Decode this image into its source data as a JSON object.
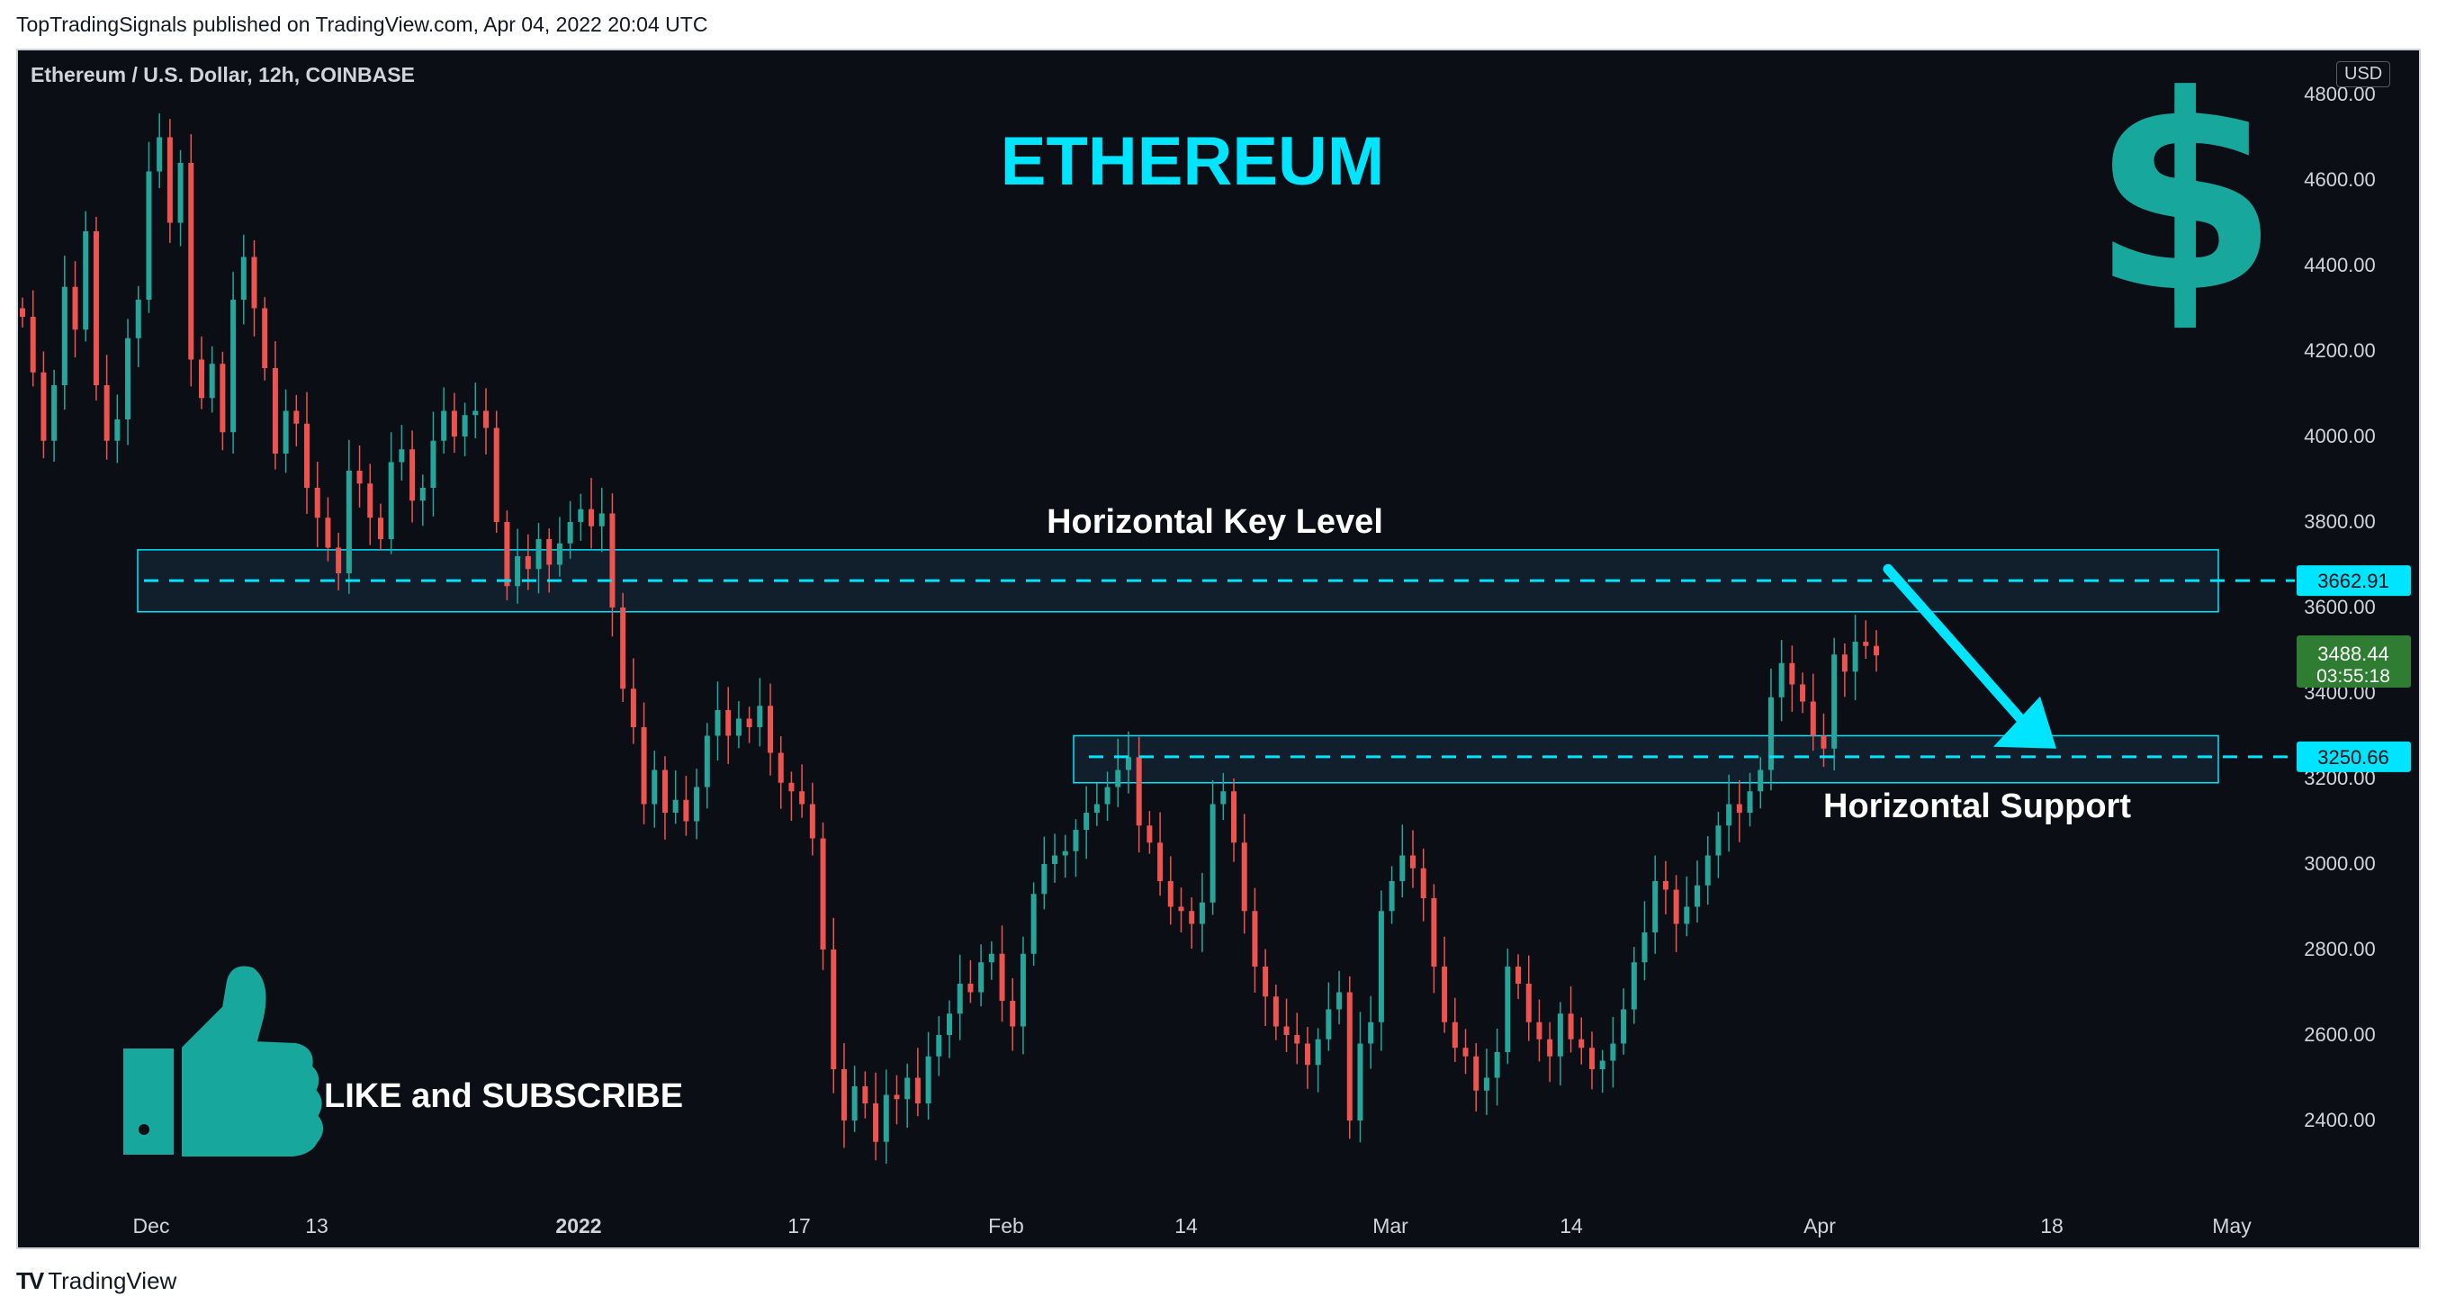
{
  "publisher_line": "TopTradingSignals published on TradingView.com, Apr 04, 2022 20:04 UTC",
  "symbol_line": "Ethereum / U.S. Dollar, 12h, COINBASE",
  "currency_badge": "USD",
  "footer_brand": "TradingView",
  "icons": [
    "dollar-sign-icon",
    "thumbs-up-icon",
    "arrow-down-right-icon",
    "tradingview-logo-icon"
  ],
  "colors": {
    "up": "#26a69a",
    "down": "#ef5350",
    "accent": "#00e5ff",
    "background": "#0c0e15",
    "text": "#d1d4dc"
  },
  "chart_data": {
    "type": "candlestick",
    "title": "ETHEREUM",
    "annotations": {
      "key_level_label": "Horizontal Key Level",
      "support_label": "Horizontal Support",
      "cta_label": "LIKE and SUBSCRIBE"
    },
    "ylim": [
      2230,
      4820
    ],
    "y_ticks": [
      2400,
      2600,
      2800,
      3000,
      3200,
      3400,
      3600,
      3800,
      4000,
      4200,
      4400,
      4600,
      4800
    ],
    "x_ticks": [
      "Dec",
      "13",
      "2022",
      "17",
      "Feb",
      "14",
      "Mar",
      "14",
      "Apr",
      "18",
      "May"
    ],
    "levels": [
      {
        "name": "key_level",
        "value": 3662.91,
        "label": "3662.91",
        "zone": [
          3590,
          3735
        ]
      },
      {
        "name": "support",
        "value": 3250.66,
        "label": "3250.66",
        "zone": [
          3190,
          3300
        ]
      }
    ],
    "last_price": {
      "value": 3488.44,
      "label": "3488.44",
      "countdown": "03:55:18"
    },
    "projection": {
      "from": 3690,
      "to": 3270
    },
    "closes": [
      4280,
      4150,
      3990,
      4120,
      4350,
      4250,
      4480,
      4120,
      3990,
      4040,
      4230,
      4320,
      4620,
      4700,
      4500,
      4640,
      4180,
      4090,
      4170,
      4010,
      4320,
      4420,
      4300,
      4160,
      3960,
      4060,
      4030,
      3880,
      3810,
      3740,
      3680,
      3920,
      3890,
      3810,
      3760,
      3940,
      3970,
      3850,
      3880,
      3990,
      4060,
      4000,
      4050,
      4060,
      4020,
      3800,
      3650,
      3720,
      3690,
      3760,
      3700,
      3750,
      3800,
      3830,
      3790,
      3820,
      3600,
      3410,
      3320,
      3140,
      3220,
      3120,
      3150,
      3100,
      3180,
      3300,
      3360,
      3300,
      3340,
      3320,
      3370,
      3260,
      3190,
      3170,
      3140,
      3060,
      2800,
      2520,
      2400,
      2480,
      2440,
      2350,
      2460,
      2450,
      2500,
      2440,
      2550,
      2600,
      2650,
      2720,
      2700,
      2770,
      2790,
      2680,
      2620,
      2790,
      2930,
      3000,
      3020,
      3030,
      3080,
      3120,
      3140,
      3180,
      3220,
      3250,
      3090,
      3050,
      2960,
      2900,
      2890,
      2860,
      2910,
      3140,
      3170,
      3050,
      2890,
      2760,
      2690,
      2620,
      2600,
      2580,
      2530,
      2590,
      2660,
      2700,
      2400,
      2580,
      2630,
      2890,
      2960,
      3020,
      2990,
      2920,
      2760,
      2630,
      2570,
      2550,
      2470,
      2500,
      2560,
      2760,
      2720,
      2630,
      2590,
      2550,
      2650,
      2590,
      2570,
      2520,
      2540,
      2580,
      2660,
      2770,
      2840,
      2960,
      2940,
      2860,
      2900,
      2950,
      3020,
      3090,
      3140,
      3120,
      3170,
      3220,
      3390,
      3470,
      3420,
      3380,
      3300,
      3270,
      3490,
      3450,
      3520,
      3510,
      3488
    ]
  }
}
